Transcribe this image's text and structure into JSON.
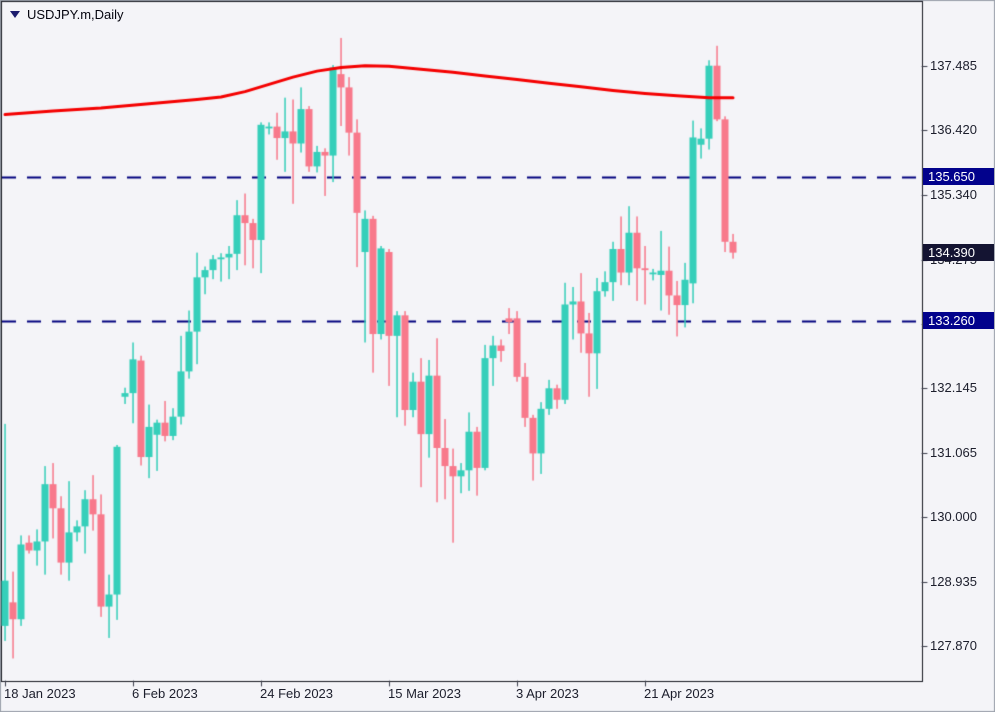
{
  "window": {
    "title": "USDJPY.m,Daily"
  },
  "colors": {
    "background": "#f4f4f8",
    "window_border": "#9aa0aa",
    "plot_border": "#15171f",
    "bull_candle": "#36cfba",
    "bear_candle": "#f8798b",
    "ma_line": "#f50000",
    "hline": "#00007e",
    "hline_badge_bg": "#02028c",
    "current_badge_bg": "#141432",
    "badge_text": "#ffffff",
    "axis_text": "#1c1e2c",
    "title_text": "#05050f",
    "triangle": "#1c1c6e"
  },
  "chart_data": {
    "type": "candlestick",
    "symbol": "USDJPY.m",
    "timeframe": "Daily",
    "title": "USDJPY.m,Daily",
    "legend_position": "none",
    "grid": false,
    "price_range_visible": [
      127.2,
      138.55
    ],
    "y_axis_labels": [
      {
        "price": 137.485,
        "label": "137.485"
      },
      {
        "price": 136.42,
        "label": "136.420"
      },
      {
        "price": 135.34,
        "label": "135.340"
      },
      {
        "price": 134.275,
        "label": "134.275"
      },
      {
        "price": 133.21,
        "label": "133.210"
      },
      {
        "price": 132.145,
        "label": "132.145"
      },
      {
        "price": 131.065,
        "label": "131.065"
      },
      {
        "price": 130.0,
        "label": "130.000"
      },
      {
        "price": 128.935,
        "label": "128.935"
      },
      {
        "price": 127.87,
        "label": "127.870"
      }
    ],
    "x_axis_labels": [
      {
        "index": 0,
        "label": "18 Jan 2023"
      },
      {
        "index": 16,
        "label": "6 Feb 2023"
      },
      {
        "index": 32,
        "label": "24 Feb 2023"
      },
      {
        "index": 48,
        "label": "15 Mar 2023"
      },
      {
        "index": 64,
        "label": "3 Apr 2023"
      },
      {
        "index": 80,
        "label": "21 Apr 2023"
      }
    ],
    "horizontal_lines": [
      {
        "price": 135.65,
        "label": "135.650",
        "style": "dashed"
      },
      {
        "price": 133.26,
        "label": "133.260",
        "style": "dashed"
      }
    ],
    "current_price": {
      "price": 134.39,
      "label": "134.390"
    },
    "ma_line_points": [
      [
        0,
        136.68
      ],
      [
        6,
        136.74
      ],
      [
        12,
        136.79
      ],
      [
        18,
        136.86
      ],
      [
        24,
        136.93
      ],
      [
        27,
        136.97
      ],
      [
        30,
        137.06
      ],
      [
        33,
        137.18
      ],
      [
        36,
        137.3
      ],
      [
        39,
        137.4
      ],
      [
        42,
        137.46
      ],
      [
        45,
        137.49
      ],
      [
        48,
        137.48
      ],
      [
        52,
        137.43
      ],
      [
        56,
        137.38
      ],
      [
        60,
        137.32
      ],
      [
        64,
        137.26
      ],
      [
        68,
        137.2
      ],
      [
        72,
        137.14
      ],
      [
        76,
        137.08
      ],
      [
        80,
        137.03
      ],
      [
        84,
        136.99
      ],
      [
        88,
        136.96
      ],
      [
        91,
        136.96
      ]
    ],
    "candles_format": [
      "open",
      "high",
      "low",
      "close"
    ],
    "candles": [
      [
        128.2,
        131.55,
        127.95,
        128.95
      ],
      [
        128.59,
        129.1,
        127.66,
        128.31
      ],
      [
        128.31,
        129.7,
        128.2,
        129.55
      ],
      [
        129.58,
        129.7,
        129.4,
        129.45
      ],
      [
        129.45,
        129.8,
        129.2,
        129.6
      ],
      [
        129.6,
        130.85,
        129.05,
        130.55
      ],
      [
        130.55,
        130.9,
        129.65,
        130.15
      ],
      [
        130.15,
        130.35,
        129.05,
        129.25
      ],
      [
        129.25,
        130.6,
        128.95,
        129.75
      ],
      [
        129.75,
        129.95,
        129.6,
        129.85
      ],
      [
        129.85,
        130.45,
        129.4,
        130.3
      ],
      [
        130.3,
        130.7,
        129.78,
        130.05
      ],
      [
        130.05,
        130.38,
        128.35,
        128.52
      ],
      [
        128.52,
        129.05,
        128.0,
        128.72
      ],
      [
        128.72,
        131.2,
        128.3,
        131.17
      ],
      [
        132.0,
        132.15,
        131.88,
        132.06
      ],
      [
        132.06,
        132.9,
        131.56,
        132.62
      ],
      [
        132.6,
        132.68,
        130.86,
        131.0
      ],
      [
        131.0,
        131.87,
        130.65,
        131.5
      ],
      [
        131.37,
        131.62,
        130.77,
        131.57
      ],
      [
        131.57,
        131.93,
        131.26,
        131.35
      ],
      [
        131.35,
        131.81,
        131.28,
        131.67
      ],
      [
        131.67,
        133.01,
        131.54,
        132.42
      ],
      [
        132.42,
        133.43,
        132.3,
        133.08
      ],
      [
        133.08,
        134.39,
        132.54,
        133.98
      ],
      [
        133.98,
        134.16,
        133.7,
        134.1
      ],
      [
        134.1,
        134.35,
        133.95,
        134.28
      ],
      [
        134.28,
        134.38,
        133.91,
        134.31
      ],
      [
        134.31,
        134.5,
        133.95,
        134.37
      ],
      [
        134.37,
        135.26,
        134.1,
        135.01
      ],
      [
        135.01,
        135.37,
        134.18,
        134.88
      ],
      [
        134.88,
        134.95,
        134.13,
        134.6
      ],
      [
        134.6,
        136.55,
        134.05,
        136.51
      ],
      [
        136.45,
        136.55,
        136.35,
        136.48
      ],
      [
        136.48,
        136.71,
        135.93,
        136.29
      ],
      [
        136.29,
        136.96,
        135.73,
        136.4
      ],
      [
        136.4,
        136.93,
        135.2,
        136.2
      ],
      [
        136.2,
        137.13,
        136.05,
        136.77
      ],
      [
        136.77,
        136.82,
        135.73,
        135.82
      ],
      [
        135.82,
        136.16,
        135.72,
        136.06
      ],
      [
        136.06,
        136.12,
        135.33,
        136.0
      ],
      [
        136.0,
        137.5,
        135.56,
        137.46
      ],
      [
        137.35,
        137.95,
        136.49,
        137.13
      ],
      [
        137.13,
        137.3,
        136.0,
        136.38
      ],
      [
        136.38,
        136.6,
        134.15,
        135.05
      ],
      [
        134.4,
        135.09,
        132.9,
        134.95
      ],
      [
        134.95,
        135.0,
        132.4,
        133.04
      ],
      [
        133.04,
        134.5,
        132.95,
        134.46
      ],
      [
        134.4,
        134.45,
        132.18,
        133.01
      ],
      [
        133.01,
        133.42,
        131.66,
        133.35
      ],
      [
        133.35,
        133.42,
        131.52,
        131.78
      ],
      [
        131.78,
        132.4,
        131.66,
        132.25
      ],
      [
        132.25,
        132.64,
        130.5,
        131.38
      ],
      [
        131.38,
        132.61,
        130.99,
        132.35
      ],
      [
        132.35,
        132.97,
        130.25,
        131.15
      ],
      [
        131.15,
        131.63,
        130.3,
        130.85
      ],
      [
        130.85,
        131.14,
        129.58,
        130.68
      ],
      [
        130.68,
        130.9,
        130.4,
        130.78
      ],
      [
        130.78,
        131.74,
        130.44,
        131.42
      ],
      [
        131.42,
        131.5,
        130.36,
        130.82
      ],
      [
        130.82,
        132.86,
        130.78,
        132.64
      ],
      [
        132.64,
        133.01,
        132.18,
        132.85
      ],
      [
        132.85,
        132.95,
        132.58,
        132.76
      ],
      [
        133.3,
        133.47,
        133.04,
        133.24
      ],
      [
        133.3,
        133.42,
        132.25,
        132.33
      ],
      [
        132.33,
        132.56,
        131.5,
        131.65
      ],
      [
        131.65,
        131.7,
        130.61,
        131.06
      ],
      [
        131.06,
        131.91,
        130.72,
        131.8
      ],
      [
        131.8,
        132.28,
        131.7,
        132.14
      ],
      [
        132.14,
        132.2,
        131.8,
        131.95
      ],
      [
        131.95,
        133.89,
        131.88,
        133.53
      ],
      [
        133.53,
        133.82,
        132.95,
        133.58
      ],
      [
        133.58,
        134.05,
        132.73,
        133.05
      ],
      [
        133.05,
        133.39,
        132.0,
        132.72
      ],
      [
        132.72,
        133.97,
        132.13,
        133.75
      ],
      [
        133.75,
        134.08,
        133.66,
        133.9
      ],
      [
        133.9,
        134.57,
        133.59,
        134.45
      ],
      [
        134.45,
        134.99,
        133.85,
        134.06
      ],
      [
        134.06,
        135.16,
        133.85,
        134.72
      ],
      [
        134.72,
        134.99,
        133.59,
        134.13
      ],
      [
        134.13,
        134.5,
        133.53,
        134.1
      ],
      [
        134.03,
        134.12,
        133.93,
        134.06
      ],
      [
        134.02,
        134.75,
        133.43,
        134.09
      ],
      [
        134.09,
        134.49,
        133.36,
        133.68
      ],
      [
        133.68,
        133.92,
        133.0,
        133.52
      ],
      [
        133.52,
        134.22,
        133.15,
        133.94
      ],
      [
        133.88,
        136.58,
        133.55,
        136.3
      ],
      [
        136.18,
        136.45,
        135.95,
        136.28
      ],
      [
        136.28,
        137.58,
        136.1,
        137.49
      ],
      [
        137.49,
        137.82,
        136.57,
        136.6
      ],
      [
        136.6,
        136.65,
        134.4,
        134.57
      ],
      [
        134.57,
        134.7,
        134.29,
        134.39
      ]
    ]
  }
}
